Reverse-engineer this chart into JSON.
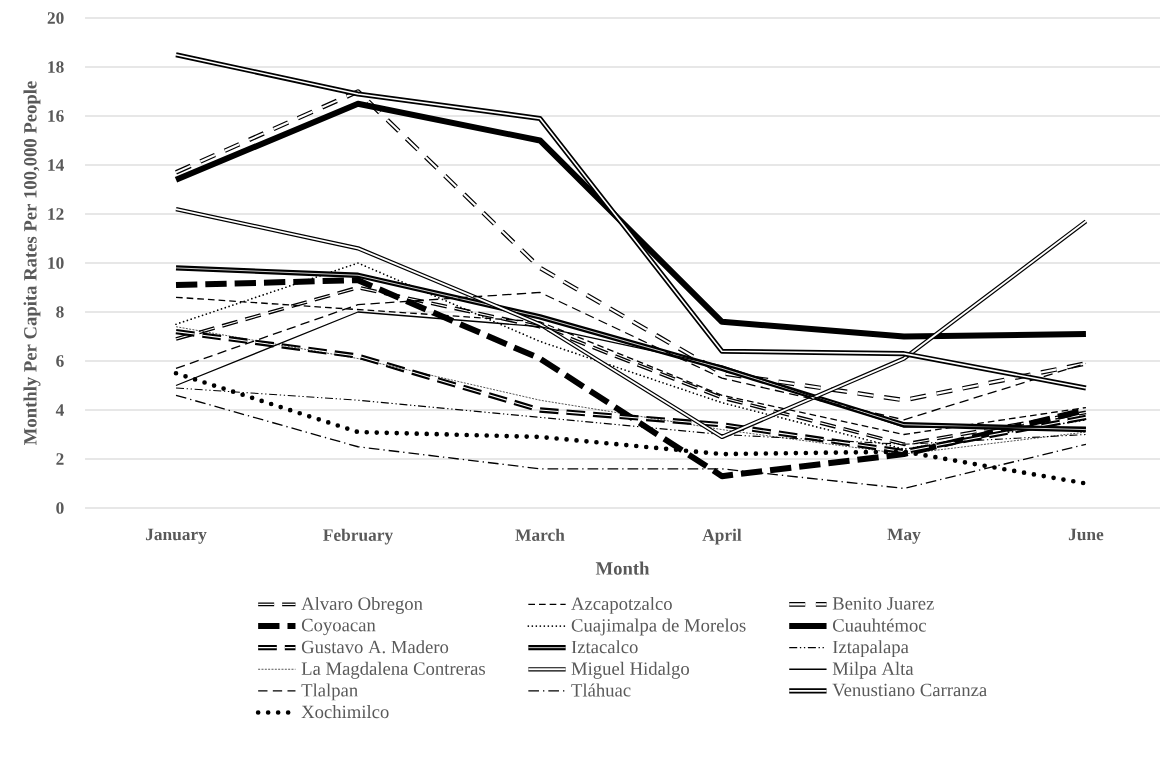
{
  "chart_data": {
    "type": "line",
    "xlabel": "Month",
    "ylabel": "Monthly Per Capita Rates Per 100,000 People",
    "categories": [
      "January",
      "February",
      "March",
      "April",
      "May",
      "June"
    ],
    "ylim": [
      0,
      20
    ],
    "yticks": [
      0,
      2,
      4,
      6,
      8,
      10,
      12,
      14,
      16,
      18,
      20
    ],
    "grid": "y",
    "legend": "bottom",
    "series": [
      {
        "name": "Alvaro Obregon",
        "color": "#000000",
        "line_style": "double dashed",
        "values": [
          6.9,
          9.0,
          7.4,
          4.5,
          2.6,
          3.9
        ]
      },
      {
        "name": "Azcapotzalco",
        "color": "#000000",
        "line_style": "dashed",
        "values": [
          8.6,
          8.1,
          7.6,
          4.6,
          3.0,
          4.1
        ]
      },
      {
        "name": "Benito Juarez",
        "color": "#000000",
        "line_style": "triple dashed",
        "values": [
          13.7,
          17.0,
          9.8,
          5.5,
          4.4,
          5.9
        ]
      },
      {
        "name": "Coyoacan",
        "color": "#000000",
        "line_style": "thick dashed",
        "values": [
          9.1,
          9.3,
          6.1,
          1.3,
          2.2,
          4.0
        ]
      },
      {
        "name": "Cuajimalpa de Morelos",
        "color": "#000000",
        "line_style": "dotted",
        "values": [
          7.5,
          10.0,
          6.8,
          4.3,
          2.4,
          3.6
        ]
      },
      {
        "name": "Cuauhtémoc",
        "color": "#000000",
        "line_style": "solid",
        "values": [
          13.4,
          16.5,
          15.0,
          7.6,
          7.0,
          7.1
        ]
      },
      {
        "name": "Gustavo A. Madero",
        "color": "#000000",
        "line_style": "thick double dashed",
        "values": [
          7.2,
          6.2,
          4.0,
          3.4,
          2.3,
          3.7
        ]
      },
      {
        "name": "Iztacalco",
        "color": "#000000",
        "line_style": "solid",
        "values": [
          9.8,
          9.5,
          7.8,
          5.7,
          3.4,
          3.2
        ]
      },
      {
        "name": "Iztapalapa",
        "color": "#000000",
        "line_style": "dashdotdot",
        "values": [
          4.9,
          4.4,
          3.7,
          3.0,
          2.6,
          3.0
        ]
      },
      {
        "name": "La Magdalena Contreras",
        "color": "#000000",
        "line_style": "fine dotted",
        "values": [
          7.4,
          6.1,
          4.4,
          3.2,
          2.2,
          3.1
        ]
      },
      {
        "name": "Miguel Hidalgo",
        "color": "#000000",
        "line_style": "solid",
        "values": [
          12.2,
          10.6,
          7.5,
          2.9,
          6.1,
          11.7
        ]
      },
      {
        "name": "Milpa Alta",
        "color": "#000000",
        "line_style": "solid",
        "values": [
          5.0,
          8.0,
          7.4,
          5.8,
          3.3,
          3.3
        ]
      },
      {
        "name": "Tlalpan",
        "color": "#000000",
        "line_style": "long dashed",
        "values": [
          5.7,
          8.3,
          8.8,
          5.3,
          3.6,
          5.9
        ]
      },
      {
        "name": "Tláhuac",
        "color": "#000000",
        "line_style": "dashdot",
        "values": [
          4.6,
          2.5,
          1.6,
          1.6,
          0.8,
          2.6
        ]
      },
      {
        "name": "Venustiano Carranza",
        "color": "#000000",
        "line_style": "solid",
        "values": [
          18.5,
          16.9,
          15.9,
          6.4,
          6.3,
          4.9
        ]
      },
      {
        "name": "Xochimilco",
        "color": "#000000",
        "line_style": "large dots",
        "values": [
          5.5,
          3.1,
          2.9,
          2.2,
          2.3,
          1.0
        ]
      }
    ]
  }
}
